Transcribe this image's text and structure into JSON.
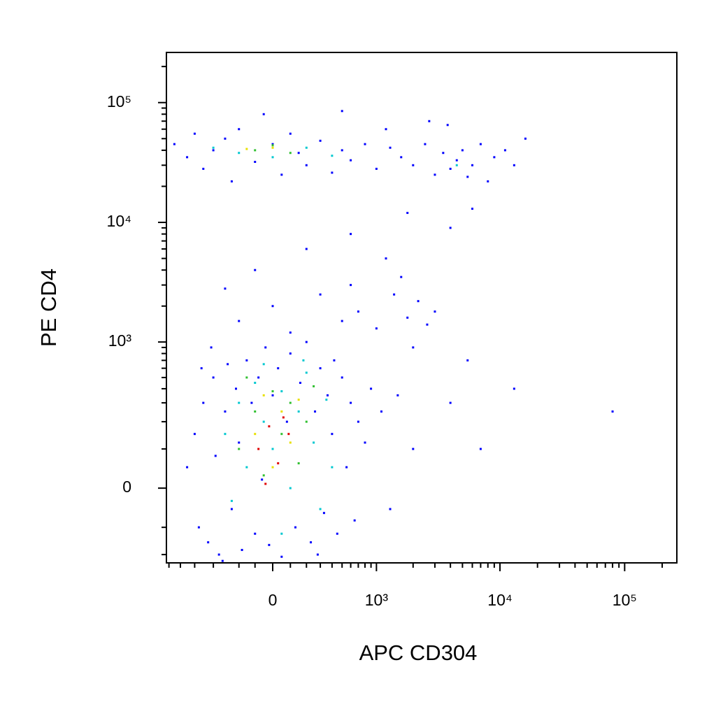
{
  "chart_data": {
    "type": "scatter",
    "xlabel": "APC CD304",
    "ylabel": "PE CD4",
    "xscale": "biexponential",
    "yscale": "biexponential",
    "xlim": [
      -1050,
      262144
    ],
    "ylim": [
      -240,
      262144
    ],
    "xticks": [
      0,
      {
        "value": 1000,
        "label": "10³"
      },
      {
        "value": 10000,
        "label": "10⁴"
      },
      {
        "value": 100000,
        "label": "10⁵"
      }
    ],
    "yticks": [
      0,
      {
        "value": 1000,
        "label": "10³"
      },
      {
        "value": 10000,
        "label": "10⁴"
      },
      {
        "value": 100000,
        "label": "10⁵"
      }
    ],
    "xminorticks": [
      -1000,
      -800,
      -600,
      -400,
      -200,
      -100,
      100,
      200,
      300,
      400,
      500,
      600,
      700,
      800,
      900,
      2000,
      3000,
      4000,
      5000,
      6000,
      7000,
      8000,
      9000,
      20000,
      30000,
      40000,
      50000,
      60000,
      70000,
      80000,
      90000,
      200000
    ],
    "yminorticks": [
      -200,
      -100,
      100,
      200,
      300,
      400,
      500,
      600,
      700,
      800,
      900,
      2000,
      3000,
      4000,
      5000,
      6000,
      7000,
      8000,
      9000,
      20000,
      30000,
      40000,
      50000,
      60000,
      70000,
      80000,
      90000,
      200000
    ],
    "series": [
      {
        "color": "#0000ff",
        "x": [
          -700,
          -600,
          -550,
          -500,
          -450,
          -400,
          -380,
          -350,
          -300,
          -280,
          -250,
          -220,
          -200,
          -180,
          -150,
          -120,
          -100,
          -80,
          -60,
          -40,
          -20,
          0,
          30,
          50,
          80,
          100,
          130,
          160,
          200,
          230,
          260,
          300,
          330,
          360,
          400,
          450,
          500,
          550,
          600,
          650,
          700,
          800,
          900,
          1100,
          1300,
          1500,
          2000,
          -520,
          -420,
          -320,
          280,
          420,
          -200,
          0,
          100,
          300,
          500,
          700,
          1000,
          1400,
          1800,
          2200,
          2600,
          1600,
          2000,
          3000,
          -100,
          200,
          600,
          1200,
          1800,
          4000,
          6000,
          5500,
          4000,
          7000,
          13000,
          80000,
          600,
          -300,
          -900,
          -700,
          -600,
          -500,
          -400,
          -300,
          -250,
          -200,
          -100,
          0,
          50,
          100,
          150,
          200,
          300,
          400,
          500,
          600,
          800,
          1000,
          1300,
          1600,
          2000,
          2500,
          3000,
          3500,
          4000,
          4500,
          5000,
          5500,
          6000,
          7000,
          8000,
          9000,
          11000,
          13000,
          16000,
          1200,
          3800,
          -50,
          500,
          2700
        ],
        "y": [
          50,
          150,
          -100,
          300,
          -150,
          500,
          80,
          -200,
          250,
          650,
          -50,
          400,
          120,
          -180,
          700,
          300,
          -120,
          500,
          20,
          900,
          -160,
          350,
          600,
          -210,
          200,
          800,
          -100,
          450,
          1000,
          -150,
          250,
          600,
          -60,
          350,
          150,
          -120,
          500,
          50,
          300,
          -80,
          200,
          120,
          400,
          250,
          -50,
          350,
          100,
          600,
          900,
          -230,
          -200,
          700,
          1500,
          2000,
          1200,
          2500,
          1500,
          1800,
          1300,
          2500,
          1600,
          2200,
          1400,
          3500,
          900,
          1800,
          4000,
          6000,
          8000,
          5000,
          12000,
          9000,
          13000,
          700,
          300,
          100,
          400,
          250,
          3000,
          2800,
          45000,
          35000,
          55000,
          28000,
          40000,
          50000,
          22000,
          60000,
          32000,
          45000,
          25000,
          55000,
          38000,
          30000,
          48000,
          26000,
          40000,
          33000,
          45000,
          28000,
          42000,
          35000,
          30000,
          45000,
          25000,
          38000,
          28000,
          33000,
          40000,
          24000,
          30000,
          45000,
          22000,
          35000,
          40000,
          30000,
          50000,
          60000,
          65000,
          80000,
          85000,
          70000
        ]
      },
      {
        "color": "#00c8d0",
        "x": [
          -300,
          -200,
          -150,
          -100,
          -50,
          0,
          50,
          100,
          150,
          200,
          250,
          300,
          350,
          -250,
          400,
          -50,
          50,
          180,
          -400,
          -200,
          0,
          200,
          400,
          4500
        ],
        "y": [
          150,
          300,
          50,
          450,
          200,
          100,
          380,
          0,
          250,
          550,
          120,
          -50,
          320,
          -30,
          50,
          650,
          -120,
          700,
          42000,
          38000,
          35000,
          42000,
          36000,
          30000
        ]
      },
      {
        "color": "#30c030",
        "x": [
          -200,
          -100,
          -50,
          0,
          50,
          100,
          150,
          200,
          250,
          -150,
          -100,
          0,
          100
        ],
        "y": [
          100,
          250,
          30,
          380,
          150,
          300,
          60,
          200,
          420,
          500,
          40000,
          44000,
          38000
        ]
      },
      {
        "color": "#e8e000",
        "x": [
          -100,
          0,
          50,
          100,
          150,
          -50,
          0,
          -150
        ],
        "y": [
          150,
          50,
          250,
          120,
          320,
          350,
          42000,
          41000
        ]
      },
      {
        "color": "#e00000",
        "x": [
          -80,
          -20,
          30,
          60,
          -40,
          90
        ],
        "y": [
          100,
          180,
          60,
          220,
          10,
          150
        ]
      }
    ]
  }
}
